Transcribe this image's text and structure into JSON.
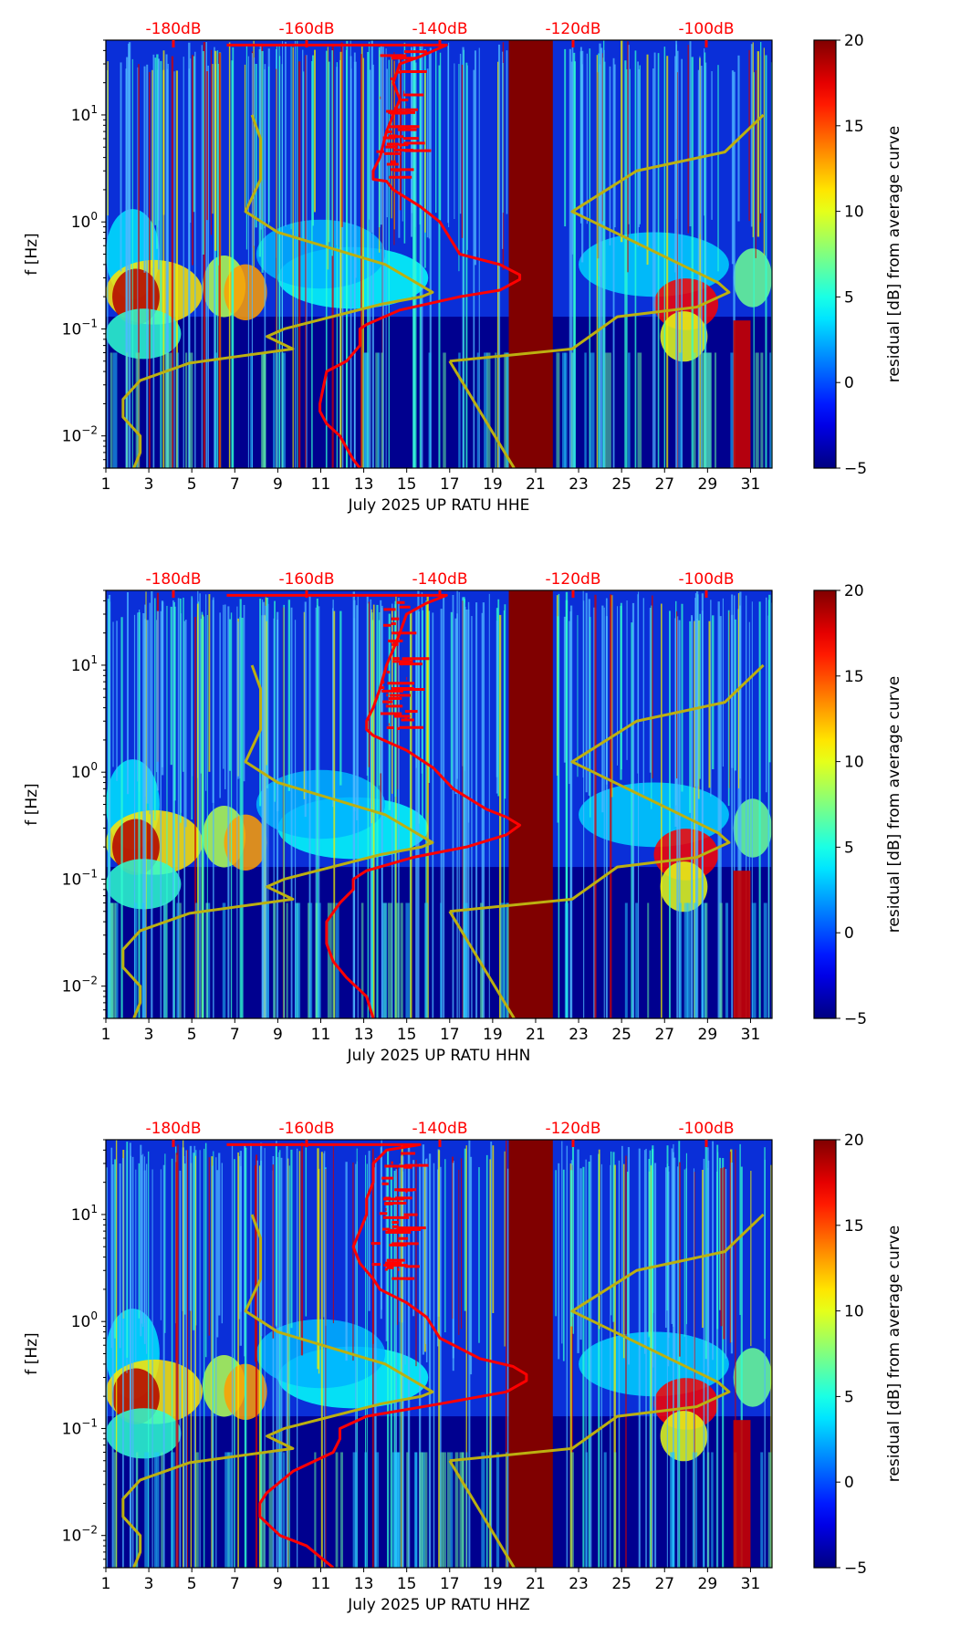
{
  "chart_data": [
    {
      "type": "heatmap",
      "title": "",
      "xlabel": "July 2025 UP RATU  HHE",
      "ylabel": "f [Hz]",
      "xlim": [
        1,
        32
      ],
      "ylim": [
        0.005,
        50
      ],
      "yscale": "log",
      "x_ticks": [
        "1",
        "3",
        "5",
        "7",
        "9",
        "11",
        "13",
        "15",
        "17",
        "19",
        "21",
        "23",
        "25",
        "27",
        "29",
        "31"
      ],
      "y_ticks": [
        {
          "value": 10,
          "mantissa": "10",
          "exp": "1"
        },
        {
          "value": 1,
          "mantissa": "10",
          "exp": "0"
        },
        {
          "value": 0.1,
          "mantissa": "10",
          "exp": "−1"
        },
        {
          "value": 0.01,
          "mantissa": "10",
          "exp": "−2"
        }
      ],
      "top_axis": {
        "ticks": [
          {
            "value": -180,
            "label": "-180dB"
          },
          {
            "value": -160,
            "label": "-160dB"
          },
          {
            "value": -140,
            "label": "-140dB"
          },
          {
            "value": -120,
            "label": "-120dB"
          },
          {
            "value": -100,
            "label": "-100dB"
          }
        ],
        "color": "#ff0000"
      },
      "colorbar": {
        "label": "residual [dB] from average curve",
        "range": [
          -5,
          20
        ],
        "ticks": [
          "−5",
          "0",
          "5",
          "10",
          "15",
          "20"
        ],
        "colormap": "jet"
      },
      "data_gap": {
        "x_start": 19.75,
        "x_end": 21.8,
        "color": "#800000"
      },
      "red_curve": {
        "name": "average PSD",
        "points": [
          [
            -172,
            45
          ],
          [
            -139,
            45
          ],
          [
            -143,
            35
          ],
          [
            -146,
            30
          ],
          [
            -147,
            20
          ],
          [
            -146,
            14
          ],
          [
            -147,
            10
          ],
          [
            -148,
            7
          ],
          [
            -149,
            4
          ],
          [
            -150,
            3
          ],
          [
            -150,
            2.5
          ],
          [
            -148,
            2.4
          ],
          [
            -147,
            2
          ],
          [
            -143,
            1.4
          ],
          [
            -140,
            1
          ],
          [
            -137,
            0.5
          ],
          [
            -131,
            0.4
          ],
          [
            -128,
            0.32
          ],
          [
            -128,
            0.29
          ],
          [
            -131,
            0.23
          ],
          [
            -137,
            0.2
          ],
          [
            -146,
            0.15
          ],
          [
            -151,
            0.11
          ],
          [
            -152,
            0.1
          ],
          [
            -152,
            0.07
          ],
          [
            -154,
            0.05
          ],
          [
            -157,
            0.04
          ],
          [
            -158,
            0.02
          ],
          [
            -158,
            0.017
          ],
          [
            -157,
            0.013
          ],
          [
            -155,
            0.01
          ],
          [
            -153,
            0.006
          ],
          [
            -152,
            0.005
          ]
        ]
      },
      "yellow_curve": {
        "name": "day profile",
        "color": "#bcb010",
        "points": [
          [
            7.8,
            10
          ],
          [
            8.2,
            6
          ],
          [
            8.2,
            2.5
          ],
          [
            7.5,
            1.25
          ],
          [
            9.0,
            0.8
          ],
          [
            14.0,
            0.4
          ],
          [
            16.2,
            0.22
          ],
          [
            15.7,
            0.2
          ],
          [
            13.8,
            0.17
          ],
          [
            9.3,
            0.1
          ],
          [
            8.5,
            0.085
          ],
          [
            9.7,
            0.065
          ],
          [
            4.9,
            0.048
          ],
          [
            2.6,
            0.033
          ],
          [
            1.8,
            0.022
          ],
          [
            1.8,
            0.015
          ],
          [
            2.6,
            0.01
          ],
          [
            2.6,
            0.007
          ],
          [
            2.3,
            0.005
          ]
        ]
      },
      "yellow_curve_2": {
        "points": [
          [
            17.0,
            0.05
          ],
          [
            22.7,
            0.065
          ],
          [
            24.8,
            0.13
          ],
          [
            28.5,
            0.16
          ],
          [
            30.0,
            0.22
          ],
          [
            29.5,
            0.27
          ],
          [
            22.7,
            1.25
          ],
          [
            25.7,
            3
          ],
          [
            29.8,
            4.5
          ],
          [
            31.6,
            10
          ]
        ]
      },
      "yellow_curve_3": {
        "points": [
          [
            17.0,
            0.05
          ],
          [
            20.0,
            0.005
          ]
        ]
      }
    },
    {
      "type": "heatmap",
      "title": "",
      "xlabel": "July 2025 UP RATU  HHN",
      "ylabel": "f [Hz]",
      "xlim": [
        1,
        32
      ],
      "ylim": [
        0.005,
        50
      ],
      "yscale": "log",
      "x_ticks": [
        "1",
        "3",
        "5",
        "7",
        "9",
        "11",
        "13",
        "15",
        "17",
        "19",
        "21",
        "23",
        "25",
        "27",
        "29",
        "31"
      ],
      "y_ticks": [
        {
          "value": 10,
          "mantissa": "10",
          "exp": "1"
        },
        {
          "value": 1,
          "mantissa": "10",
          "exp": "0"
        },
        {
          "value": 0.1,
          "mantissa": "10",
          "exp": "−1"
        },
        {
          "value": 0.01,
          "mantissa": "10",
          "exp": "−2"
        }
      ],
      "top_axis": {
        "ticks": [
          {
            "value": -180,
            "label": "-180dB"
          },
          {
            "value": -160,
            "label": "-160dB"
          },
          {
            "value": -140,
            "label": "-140dB"
          },
          {
            "value": -120,
            "label": "-120dB"
          },
          {
            "value": -100,
            "label": "-100dB"
          }
        ],
        "color": "#ff0000"
      },
      "colorbar": {
        "label": "residual [dB] from average curve",
        "range": [
          -5,
          20
        ],
        "ticks": [
          "−5",
          "0",
          "5",
          "10",
          "15",
          "20"
        ],
        "colormap": "jet"
      },
      "data_gap": {
        "x_start": 19.75,
        "x_end": 21.8,
        "color": "#800000"
      },
      "red_curve": {
        "name": "average PSD",
        "points": [
          [
            -172,
            45
          ],
          [
            -139,
            45
          ],
          [
            -142,
            38
          ],
          [
            -145,
            30
          ],
          [
            -146,
            20
          ],
          [
            -147,
            14
          ],
          [
            -148,
            10
          ],
          [
            -149,
            6
          ],
          [
            -150,
            4
          ],
          [
            -151,
            3
          ],
          [
            -151,
            2.5
          ],
          [
            -150,
            2.2
          ],
          [
            -145,
            1.6
          ],
          [
            -141,
            1.1
          ],
          [
            -138,
            0.7
          ],
          [
            -133,
            0.45
          ],
          [
            -130,
            0.38
          ],
          [
            -128,
            0.32
          ],
          [
            -130,
            0.26
          ],
          [
            -136,
            0.2
          ],
          [
            -144,
            0.16
          ],
          [
            -151,
            0.12
          ],
          [
            -153,
            0.1
          ],
          [
            -153,
            0.08
          ],
          [
            -155,
            0.06
          ],
          [
            -157,
            0.04
          ],
          [
            -157,
            0.025
          ],
          [
            -156,
            0.017
          ],
          [
            -154,
            0.012
          ],
          [
            -151,
            0.008
          ],
          [
            -150,
            0.005
          ]
        ]
      },
      "yellow_curve": {
        "name": "day profile",
        "color": "#bcb010",
        "points": [
          [
            7.8,
            10
          ],
          [
            8.2,
            6
          ],
          [
            8.2,
            2.5
          ],
          [
            7.5,
            1.25
          ],
          [
            9.0,
            0.8
          ],
          [
            14.0,
            0.4
          ],
          [
            16.2,
            0.22
          ],
          [
            15.7,
            0.2
          ],
          [
            13.8,
            0.17
          ],
          [
            9.3,
            0.1
          ],
          [
            8.5,
            0.085
          ],
          [
            9.7,
            0.065
          ],
          [
            4.9,
            0.048
          ],
          [
            2.6,
            0.033
          ],
          [
            1.8,
            0.022
          ],
          [
            1.8,
            0.015
          ],
          [
            2.6,
            0.01
          ],
          [
            2.6,
            0.007
          ],
          [
            2.3,
            0.005
          ]
        ]
      },
      "yellow_curve_2": {
        "points": [
          [
            17.0,
            0.05
          ],
          [
            22.7,
            0.065
          ],
          [
            24.8,
            0.13
          ],
          [
            28.5,
            0.16
          ],
          [
            30.0,
            0.22
          ],
          [
            29.5,
            0.27
          ],
          [
            22.7,
            1.25
          ],
          [
            25.7,
            3
          ],
          [
            29.8,
            4.5
          ],
          [
            31.6,
            10
          ]
        ]
      },
      "yellow_curve_3": {
        "points": [
          [
            17.0,
            0.05
          ],
          [
            20.0,
            0.005
          ]
        ]
      }
    },
    {
      "type": "heatmap",
      "title": "",
      "xlabel": "July 2025 UP RATU  HHZ",
      "ylabel": "f [Hz]",
      "xlim": [
        1,
        32
      ],
      "ylim": [
        0.005,
        50
      ],
      "yscale": "log",
      "x_ticks": [
        "1",
        "3",
        "5",
        "7",
        "9",
        "11",
        "13",
        "15",
        "17",
        "19",
        "21",
        "23",
        "25",
        "27",
        "29",
        "31"
      ],
      "y_ticks": [
        {
          "value": 10,
          "mantissa": "10",
          "exp": "1"
        },
        {
          "value": 1,
          "mantissa": "10",
          "exp": "0"
        },
        {
          "value": 0.1,
          "mantissa": "10",
          "exp": "−1"
        },
        {
          "value": 0.01,
          "mantissa": "10",
          "exp": "−2"
        }
      ],
      "top_axis": {
        "ticks": [
          {
            "value": -180,
            "label": "-180dB"
          },
          {
            "value": -160,
            "label": "-160dB"
          },
          {
            "value": -140,
            "label": "-140dB"
          },
          {
            "value": -120,
            "label": "-120dB"
          },
          {
            "value": -100,
            "label": "-100dB"
          }
        ],
        "color": "#ff0000"
      },
      "colorbar": {
        "label": "residual [dB] from average curve",
        "range": [
          -5,
          20
        ],
        "ticks": [
          "−5",
          "0",
          "5",
          "10",
          "15",
          "20"
        ],
        "colormap": "jet"
      },
      "data_gap": {
        "x_start": 19.75,
        "x_end": 21.8,
        "color": "#800000"
      },
      "red_curve": {
        "name": "average PSD",
        "points": [
          [
            -172,
            45
          ],
          [
            -143,
            45
          ],
          [
            -148,
            40
          ],
          [
            -150,
            30
          ],
          [
            -150,
            20
          ],
          [
            -151,
            14
          ],
          [
            -151,
            10
          ],
          [
            -152,
            7
          ],
          [
            -153,
            5
          ],
          [
            -152,
            3.5
          ],
          [
            -150,
            2.5
          ],
          [
            -149,
            2
          ],
          [
            -145,
            1.5
          ],
          [
            -142,
            1.1
          ],
          [
            -140,
            0.7
          ],
          [
            -134,
            0.45
          ],
          [
            -129,
            0.38
          ],
          [
            -127,
            0.32
          ],
          [
            -127,
            0.28
          ],
          [
            -130,
            0.22
          ],
          [
            -140,
            0.17
          ],
          [
            -151,
            0.13
          ],
          [
            -155,
            0.1
          ],
          [
            -155,
            0.08
          ],
          [
            -156,
            0.06
          ],
          [
            -162,
            0.04
          ],
          [
            -166,
            0.025
          ],
          [
            -167,
            0.02
          ],
          [
            -167,
            0.015
          ],
          [
            -164,
            0.01
          ],
          [
            -160,
            0.008
          ],
          [
            -156,
            0.005
          ]
        ]
      },
      "yellow_curve": {
        "name": "day profile",
        "color": "#bcb010",
        "points": [
          [
            7.8,
            10
          ],
          [
            8.2,
            6
          ],
          [
            8.2,
            2.5
          ],
          [
            7.5,
            1.25
          ],
          [
            9.0,
            0.8
          ],
          [
            14.0,
            0.4
          ],
          [
            16.2,
            0.22
          ],
          [
            15.7,
            0.2
          ],
          [
            13.8,
            0.17
          ],
          [
            9.3,
            0.1
          ],
          [
            8.5,
            0.085
          ],
          [
            9.7,
            0.065
          ],
          [
            4.9,
            0.048
          ],
          [
            2.6,
            0.033
          ],
          [
            1.8,
            0.022
          ],
          [
            1.8,
            0.015
          ],
          [
            2.6,
            0.01
          ],
          [
            2.6,
            0.007
          ],
          [
            2.3,
            0.005
          ]
        ]
      },
      "yellow_curve_2": {
        "points": [
          [
            17.0,
            0.05
          ],
          [
            22.7,
            0.065
          ],
          [
            24.8,
            0.13
          ],
          [
            28.5,
            0.16
          ],
          [
            30.0,
            0.22
          ],
          [
            29.5,
            0.27
          ],
          [
            22.7,
            1.25
          ],
          [
            25.7,
            3
          ],
          [
            29.8,
            4.5
          ],
          [
            31.6,
            10
          ]
        ]
      },
      "yellow_curve_3": {
        "points": [
          [
            17.0,
            0.05
          ],
          [
            20.0,
            0.005
          ]
        ]
      }
    }
  ]
}
